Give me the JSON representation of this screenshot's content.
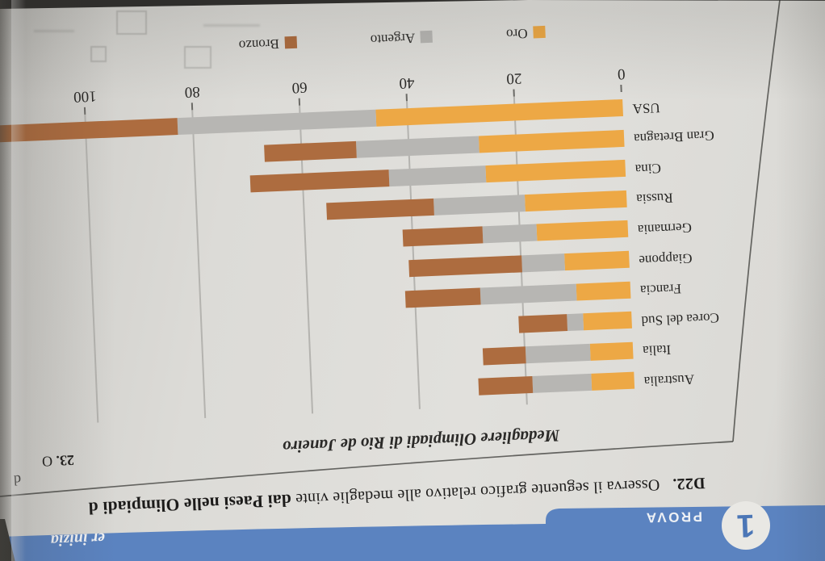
{
  "page": {
    "header": {
      "badge_number": "1",
      "badge_label": "PROVA",
      "band_right_text": "er inizia",
      "band_color": "#5b83c0"
    },
    "exercise": {
      "id": "D22.",
      "text": "Osserva il seguente grafico relativo alle medaglie vinte ",
      "text_emphasis": "dai Paesi nelle Olimpiadi",
      "text_tail": " d"
    },
    "adjacent_column_fragments": {
      "top": "d",
      "bottom_number": "23.",
      "bottom_letter": "O"
    }
  },
  "chart_data": {
    "type": "bar",
    "orientation": "horizontal",
    "stacked": true,
    "title": "Medagliere Olimpiadi di Rio de Janeiro",
    "categories": [
      "Australia",
      "Italia",
      "Corea del Sud",
      "Francia",
      "Giappone",
      "Germania",
      "Russia",
      "Cina",
      "Gran Bretagna",
      "USA"
    ],
    "series": [
      {
        "name": "Oro",
        "color": "#eda845",
        "values": [
          8,
          8,
          9,
          10,
          12,
          17,
          19,
          26,
          27,
          46
        ]
      },
      {
        "name": "Argento",
        "color": "#b7b6b3",
        "values": [
          11,
          12,
          3,
          18,
          8,
          10,
          17,
          18,
          23,
          37
        ]
      },
      {
        "name": "Bronzo",
        "color": "#ad6c3f",
        "values": [
          10,
          8,
          9,
          14,
          21,
          15,
          20,
          26,
          17,
          38
        ]
      }
    ],
    "x_ticks": [
      0,
      20,
      40,
      60,
      80,
      100
    ],
    "xlim": [
      0,
      100
    ],
    "grid": true,
    "legend_position": "bottom"
  }
}
